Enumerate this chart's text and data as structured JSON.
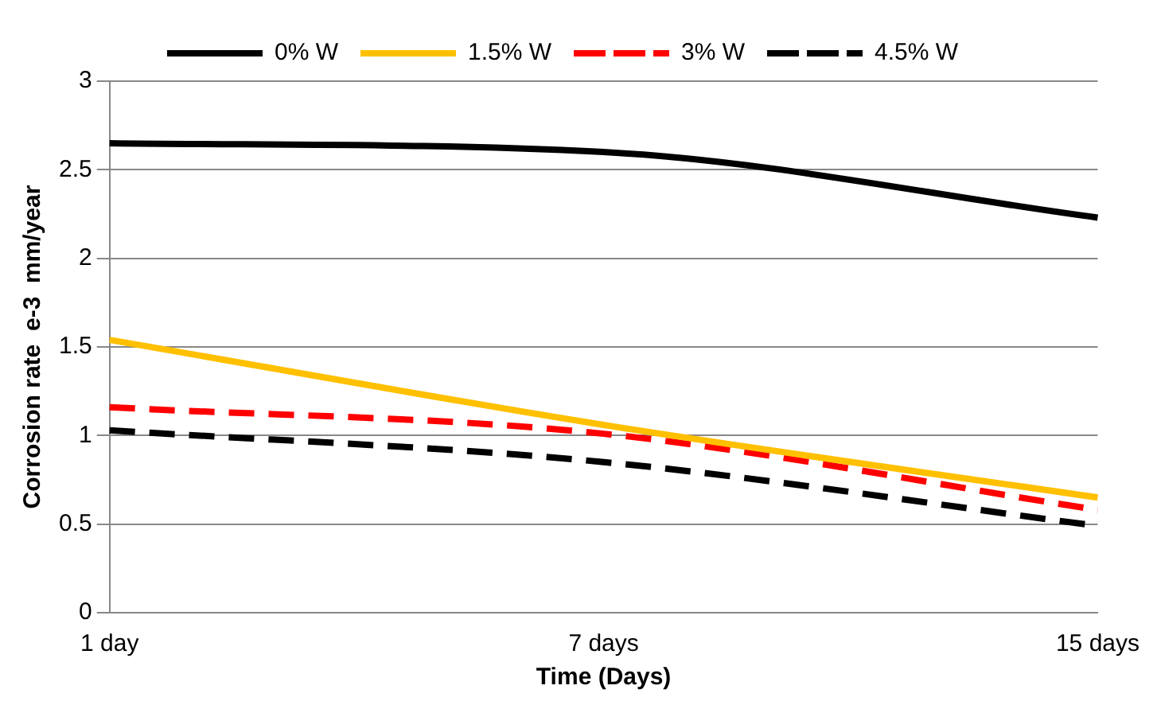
{
  "chart_data": {
    "type": "line",
    "xlabel": "Time (Days)",
    "ylabel": "Corrosion rate  e-3  mm/year",
    "categories": [
      "1 day",
      "7 days",
      "15 days"
    ],
    "series": [
      {
        "name": "0% W",
        "color": "#000000",
        "values": [
          2.65,
          2.6,
          2.23
        ],
        "line_style": "solid"
      },
      {
        "name": "1.5% W",
        "color": "#ffc000",
        "values": [
          1.54,
          1.06,
          0.65
        ],
        "line_style": "solid"
      },
      {
        "name": "3% W",
        "color": "#ff0000",
        "values": [
          1.16,
          1.01,
          0.58
        ],
        "line_style": "dashed"
      },
      {
        "name": "4.5% W",
        "color": "#000000",
        "values": [
          1.03,
          0.85,
          0.49
        ],
        "line_style": "dashed"
      }
    ],
    "ylim": [
      0,
      3
    ],
    "yticks": [
      0,
      0.5,
      1,
      1.5,
      2,
      2.5,
      3
    ],
    "grid": "y",
    "legend": "top",
    "marker": "none"
  }
}
